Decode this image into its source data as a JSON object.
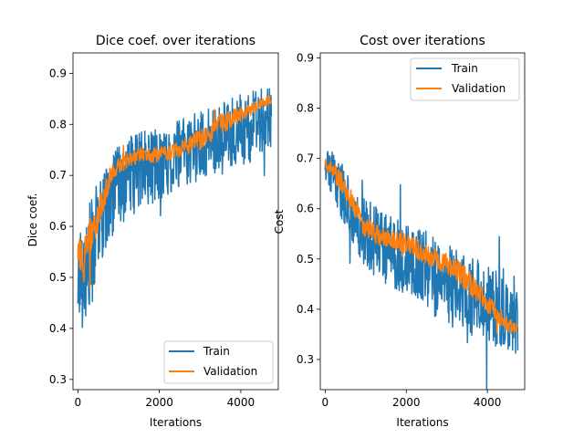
{
  "chart_data": [
    {
      "type": "line",
      "title": "Dice coef. over iterations",
      "xlabel": "Iterations",
      "ylabel": "Dice coef.",
      "xlim": [
        -120,
        4920
      ],
      "ylim": [
        0.28,
        0.94
      ],
      "xticks": [
        0,
        2000,
        4000
      ],
      "yticks": [
        0.3,
        0.4,
        0.5,
        0.6,
        0.7,
        0.8,
        0.9
      ],
      "legend_position": "lower-right",
      "series": [
        {
          "name": "Train",
          "color": "#1f77b4",
          "x": [
            0,
            250,
            500,
            750,
            1000,
            1500,
            2000,
            2500,
            3000,
            3500,
            4000,
            4500,
            4750
          ],
          "values": [
            0.5,
            0.52,
            0.6,
            0.65,
            0.68,
            0.71,
            0.72,
            0.74,
            0.76,
            0.77,
            0.79,
            0.8,
            0.81
          ],
          "noise": [
            0.1,
            0.12,
            0.09,
            0.08,
            0.08,
            0.08,
            0.07,
            0.07,
            0.07,
            0.07,
            0.07,
            0.07,
            0.06
          ]
        },
        {
          "name": "Validation",
          "color": "#ff7f0e",
          "x": [
            0,
            100,
            300,
            500,
            650,
            800,
            1000,
            1500,
            2000,
            2500,
            3000,
            3500,
            4000,
            4500,
            4750
          ],
          "values": [
            0.55,
            0.52,
            0.58,
            0.62,
            0.66,
            0.7,
            0.72,
            0.74,
            0.74,
            0.75,
            0.77,
            0.8,
            0.82,
            0.84,
            0.85
          ],
          "noise": [
            0.03,
            0.05,
            0.05,
            0.03,
            0.03,
            0.02,
            0.015,
            0.015,
            0.015,
            0.015,
            0.02,
            0.02,
            0.015,
            0.01,
            0.01
          ]
        }
      ]
    },
    {
      "type": "line",
      "title": "Cost over iterations",
      "xlabel": "Iterations",
      "ylabel": "Cost",
      "xlim": [
        -120,
        4920
      ],
      "ylim": [
        0.24,
        0.91
      ],
      "xticks": [
        0,
        2000,
        4000
      ],
      "yticks": [
        0.3,
        0.4,
        0.5,
        0.6,
        0.7,
        0.8,
        0.9
      ],
      "legend_position": "upper-right",
      "series": [
        {
          "name": "Train",
          "color": "#1f77b4",
          "x": [
            0,
            250,
            500,
            750,
            1000,
            1500,
            2000,
            2500,
            3000,
            3500,
            4000,
            4500,
            4750
          ],
          "values": [
            0.69,
            0.66,
            0.62,
            0.58,
            0.55,
            0.52,
            0.5,
            0.48,
            0.45,
            0.43,
            0.41,
            0.4,
            0.39
          ],
          "noise": [
            0.03,
            0.05,
            0.06,
            0.06,
            0.07,
            0.07,
            0.07,
            0.08,
            0.08,
            0.08,
            0.08,
            0.08,
            0.08
          ]
        },
        {
          "name": "Validation",
          "color": "#ff7f0e",
          "x": [
            0,
            250,
            500,
            750,
            1000,
            1500,
            2000,
            2500,
            3000,
            3500,
            4000,
            4500,
            4750
          ],
          "values": [
            0.69,
            0.67,
            0.64,
            0.6,
            0.56,
            0.54,
            0.53,
            0.51,
            0.49,
            0.46,
            0.41,
            0.37,
            0.36
          ],
          "noise": [
            0.01,
            0.02,
            0.02,
            0.02,
            0.02,
            0.02,
            0.02,
            0.02,
            0.02,
            0.025,
            0.02,
            0.015,
            0.01
          ]
        }
      ]
    }
  ]
}
